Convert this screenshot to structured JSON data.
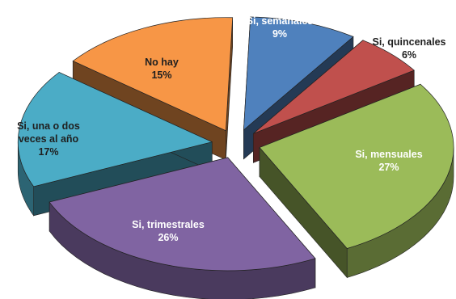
{
  "chart_data": {
    "type": "pie",
    "title": "",
    "slices": [
      {
        "label_lines": [
          "Si, semanales",
          "9%"
        ],
        "value": 9,
        "color": "#4f81bd",
        "label_color": "#ffffff"
      },
      {
        "label_lines": [
          "Si, quincenales",
          "6%"
        ],
        "value": 6,
        "color": "#c0504d",
        "label_color": "#1f1f1f"
      },
      {
        "label_lines": [
          "Si, mensuales",
          "27%"
        ],
        "value": 27,
        "color": "#9bbb59",
        "label_color": "#ffffff"
      },
      {
        "label_lines": [
          "Si, trimestrales",
          "26%"
        ],
        "value": 26,
        "color": "#8064a2",
        "label_color": "#ffffff"
      },
      {
        "label_lines": [
          "Si, una o dos",
          "veces al año",
          "17%"
        ],
        "value": 17,
        "color": "#4bacc6",
        "label_color": "#1f1f1f"
      },
      {
        "label_lines": [
          "No hay",
          "15%"
        ],
        "value": 15,
        "color": "#f79646",
        "label_color": "#1f1f1f"
      }
    ]
  }
}
